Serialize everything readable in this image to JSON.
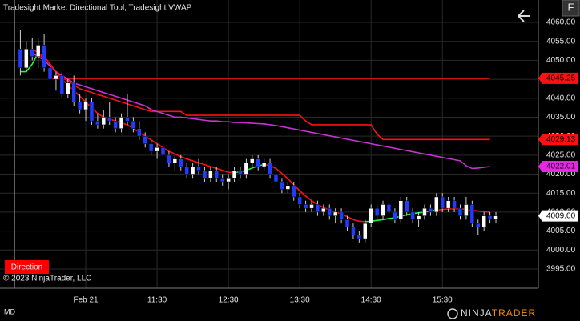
{
  "chart_data": {
    "type": "candlestick",
    "title": "Tradesight Market Directional Tool, Tradesight VWAP",
    "categories": [
      null,
      null,
      null,
      null,
      null,
      null,
      null,
      null,
      null,
      null,
      null,
      "Feb 21",
      null,
      null,
      null,
      null,
      null,
      null,
      null,
      null,
      null,
      null,
      null,
      "11:30",
      null,
      null,
      null,
      null,
      null,
      null,
      null,
      null,
      null,
      null,
      null,
      "12:30",
      null,
      null,
      null,
      null,
      null,
      null,
      null,
      null,
      null,
      null,
      null,
      "13:30",
      null,
      null,
      null,
      null,
      null,
      null,
      null,
      null,
      null,
      null,
      null,
      "14:30",
      null,
      null,
      null,
      null,
      null,
      null,
      null,
      null,
      null,
      null,
      null,
      "15:30",
      null,
      null,
      null,
      null,
      null,
      null,
      null,
      null,
      null
    ],
    "ohlc": [
      [
        4053,
        4058,
        4046,
        4048
      ],
      [
        4048,
        4055,
        4047,
        4053
      ],
      [
        4053,
        4056,
        4050,
        4051
      ],
      [
        4051,
        4056,
        4048,
        4054
      ],
      [
        4054,
        4057,
        4047,
        4048
      ],
      [
        4048,
        4050,
        4043,
        4045
      ],
      [
        4045,
        4047,
        4042,
        4046
      ],
      [
        4046,
        4047,
        4040,
        4041
      ],
      [
        4041,
        4045,
        4040,
        4044
      ],
      [
        4044,
        4046,
        4038,
        4039
      ],
      [
        4039,
        4041,
        4036,
        4037
      ],
      [
        4037,
        4040,
        4034,
        4039
      ],
      [
        4039,
        4040,
        4033,
        4034
      ],
      [
        4034,
        4036,
        4032,
        4033
      ],
      [
        4033,
        4037,
        4032,
        4035
      ],
      [
        4035,
        4039,
        4033,
        4034
      ],
      [
        4034,
        4035,
        4031,
        4032
      ],
      [
        4032,
        4036,
        4031,
        4035
      ],
      [
        4035,
        4041,
        4033,
        4034
      ],
      [
        4034,
        4035,
        4031,
        4032
      ],
      [
        4032,
        4034,
        4029,
        4030
      ],
      [
        4030,
        4031,
        4027,
        4028
      ],
      [
        4028,
        4029,
        4025,
        4026
      ],
      [
        4026,
        4028,
        4024,
        4027
      ],
      [
        4027,
        4028,
        4024,
        4025
      ],
      [
        4025,
        4026,
        4022,
        4023
      ],
      [
        4023,
        4025,
        4021,
        4024
      ],
      [
        4024,
        4025,
        4021,
        4022
      ],
      [
        4022,
        4023,
        4019,
        4020
      ],
      [
        4020,
        4023,
        4019,
        4022
      ],
      [
        4022,
        4024,
        4020,
        4021
      ],
      [
        4021,
        4022,
        4018,
        4019
      ],
      [
        4019,
        4022,
        4018,
        4021
      ],
      [
        4021,
        4022,
        4018,
        4019
      ],
      [
        4019,
        4020,
        4017,
        4018
      ],
      [
        4018,
        4020,
        4016,
        4019
      ],
      [
        4019,
        4022,
        4018,
        4021
      ],
      [
        4021,
        4022,
        4019,
        4020
      ],
      [
        4020,
        4024,
        4019,
        4023
      ],
      [
        4023,
        4025,
        4022,
        4024
      ],
      [
        4024,
        4025,
        4021,
        4022
      ],
      [
        4022,
        4024,
        4021,
        4023
      ],
      [
        4023,
        4024,
        4019,
        4020
      ],
      [
        4020,
        4021,
        4017,
        4018
      ],
      [
        4018,
        4019,
        4015,
        4016
      ],
      [
        4016,
        4018,
        4015,
        4017
      ],
      [
        4017,
        4018,
        4013,
        4014
      ],
      [
        4014,
        4015,
        4011,
        4012
      ],
      [
        4012,
        4013,
        4010,
        4011
      ],
      [
        4011,
        4013,
        4010,
        4012
      ],
      [
        4012,
        4013,
        4009,
        4010
      ],
      [
        4010,
        4012,
        4009,
        4011
      ],
      [
        4011,
        4012,
        4008,
        4009
      ],
      [
        4009,
        4011,
        4007,
        4010
      ],
      [
        4010,
        4011,
        4007,
        4008
      ],
      [
        4008,
        4009,
        4005,
        4006
      ],
      [
        4006,
        4007,
        4003,
        4004
      ],
      [
        4004,
        4005,
        4002,
        4003
      ],
      [
        4003,
        4008,
        4002,
        4007
      ],
      [
        4007,
        4012,
        4006,
        4011
      ],
      [
        4011,
        4012,
        4008,
        4009
      ],
      [
        4009,
        4013,
        4008,
        4012
      ],
      [
        4012,
        4014,
        4009,
        4010
      ],
      [
        4010,
        4011,
        4007,
        4008
      ],
      [
        4008,
        4014,
        4007,
        4013
      ],
      [
        4013,
        4014,
        4009,
        4010
      ],
      [
        4010,
        4011,
        4007,
        4008
      ],
      [
        4008,
        4010,
        4006,
        4009
      ],
      [
        4009,
        4012,
        4008,
        4011
      ],
      [
        4011,
        4012,
        4009,
        4010
      ],
      [
        4010,
        4015,
        4009,
        4014
      ],
      [
        4014,
        4015,
        4010,
        4011
      ],
      [
        4011,
        4014,
        4010,
        4013
      ],
      [
        4013,
        4014,
        4010,
        4011
      ],
      [
        4011,
        4012,
        4008,
        4009
      ],
      [
        4009,
        4014,
        4008,
        4012
      ],
      [
        4012,
        4013,
        4006,
        4007
      ],
      [
        4007,
        4008,
        4004,
        4006
      ],
      [
        4006,
        4010,
        4005,
        4009
      ],
      [
        4009,
        4010,
        4007,
        4008
      ],
      [
        4008,
        4010,
        4007,
        4009
      ]
    ],
    "up_color": "#ffffff",
    "down_color": "#1f3cff",
    "series": [
      {
        "color": "#ff1010",
        "values": [
          null,
          null,
          null,
          null,
          null,
          4045.25,
          4045.25,
          4045.25,
          4045.25,
          4045.25,
          4045.25,
          4045.25,
          4045.25,
          4045.25,
          4045.25,
          4045.25,
          4045.25,
          4045.25,
          4045.25,
          4045.25,
          4045.25,
          4045.25,
          4045.25,
          4045.25,
          4045.25,
          4045.25,
          4045.25,
          4045.25,
          4045.25,
          4045.25,
          4045.25,
          4045.25,
          4045.25,
          4045.25,
          4045.25,
          4045.25,
          4045.25,
          4045.25,
          4045.25,
          4045.25,
          4045.25,
          4045.25,
          4045.25,
          4045.25,
          4045.25,
          4045.25,
          4045.25,
          4045.25,
          4045.25,
          4045.25,
          4045.25,
          4045.25,
          4045.25,
          4045.25,
          4045.25,
          4045.25,
          4045.25,
          4045.25,
          4045.25,
          4045.25,
          4045.25,
          4045.25,
          4045.25,
          4045.25,
          4045.25,
          4045.25,
          4045.25,
          4045.25,
          4045.25,
          4045.25,
          4045.25,
          4045.25,
          4045.25,
          4045.25,
          4045.25,
          4045.25,
          4045.25,
          4045.25,
          4045.25,
          4045.25,
          null
        ]
      },
      {
        "color": "#ff1010",
        "values": [
          null,
          null,
          4053,
          4052,
          4050,
          4048.5,
          4047,
          4045.5,
          4044.5,
          4043.5,
          4042.5,
          4042,
          4041.5,
          4041,
          4040.5,
          4040,
          4039.5,
          4039,
          4038.5,
          4038,
          4037.5,
          4037,
          4036.5,
          4036.5,
          4036.5,
          4036.5,
          4036.5,
          4036.5,
          4035.5,
          4035.5,
          4035.5,
          4035.5,
          4035.5,
          4035.5,
          4035.5,
          4035.5,
          4035.5,
          4035.5,
          4035.5,
          4035.5,
          4035.5,
          4035.5,
          4035.5,
          4035.5,
          4035.5,
          4035.5,
          4035.5,
          4035.5,
          4034,
          4033,
          4033,
          4033,
          4033,
          4033,
          4033,
          4033,
          4033,
          4033,
          4033,
          4033,
          4030.5,
          4029.13,
          4029.13,
          4029.13,
          4029.13,
          4029.13,
          4029.13,
          4029.13,
          4029.13,
          4029.13,
          4029.13,
          4029.13,
          4029.13,
          4029.13,
          4029.13,
          4029.13,
          4029.13,
          4029.13,
          4029.13,
          4029.13,
          null
        ]
      },
      {
        "color": "#c832d2",
        "values": [
          null,
          null,
          4052,
          4051,
          4050,
          4048.5,
          4047,
          4046,
          4045,
          4044,
          4043.5,
          4043,
          4042.5,
          4042,
          4041.5,
          4041,
          4040.5,
          4040,
          4039.5,
          4039,
          4038.5,
          4038,
          4037,
          4036.5,
          4036,
          4035.5,
          4035,
          4035,
          4034.8,
          4034.6,
          4034.4,
          4034.2,
          4034,
          4034,
          4033.8,
          4033.8,
          4033.6,
          4033.6,
          4033.5,
          4033.4,
          4033.3,
          4033.2,
          4033,
          4032.8,
          4032.5,
          4032.2,
          4031.9,
          4031.6,
          4031.3,
          4031,
          4030.7,
          4030.4,
          4030.1,
          4029.8,
          4029.5,
          4029.2,
          4028.9,
          4028.6,
          4028.3,
          4028,
          4027.7,
          4027.4,
          4027.1,
          4026.8,
          4026.5,
          4026.2,
          4025.9,
          4025.6,
          4025.3,
          4025,
          4024.7,
          4024.4,
          4024.1,
          4023.8,
          4023.5,
          4022.2,
          4021.5,
          4021.6,
          4021.8,
          4022.01,
          null
        ]
      },
      {
        "color": "#ff1010",
        "values": [
          null,
          null,
          null,
          4052,
          4051,
          4049,
          4047,
          4045,
          4043.5,
          4042,
          4040.5,
          4039,
          4037.5,
          4036,
          4035,
          4034.5,
          4034,
          4033.5,
          4033,
          4032,
          4031,
          4030,
          4029,
          4028,
          4027,
          4026,
          4025.3,
          4024.6,
          4024,
          4023.5,
          4023,
          4022.5,
          4022,
          4021.5,
          4021,
          4020.5,
          4020.4,
          null,
          null,
          null,
          null,
          4022.5,
          4022.3,
          4021.5,
          4020.2,
          4018.8,
          4017.2,
          4015.6,
          4014.2,
          4013,
          4012,
          4011.2,
          4010.5,
          4010,
          4009.5,
          4008.8,
          4008,
          4007.6,
          4007.5,
          null,
          null,
          null,
          null,
          null,
          null,
          null,
          null,
          null,
          null,
          null,
          4010.5,
          4010.7,
          4010.8,
          4010.9,
          4010.9,
          4010.7,
          4010.5,
          4010.3,
          4010.1,
          4010,
          null
        ]
      },
      {
        "color": "#14ff3c",
        "values": [
          4047,
          4047,
          4049,
          4052,
          null,
          null,
          null,
          null,
          null,
          null,
          null,
          null,
          null,
          null,
          null,
          null,
          null,
          null,
          null,
          null,
          null,
          null,
          null,
          null,
          null,
          null,
          null,
          null,
          null,
          null,
          null,
          null,
          null,
          null,
          null,
          null,
          4020.4,
          4020.6,
          4021,
          4021.6,
          4022.2,
          4022.5,
          null,
          null,
          null,
          null,
          null,
          null,
          null,
          null,
          null,
          null,
          null,
          null,
          null,
          null,
          null,
          null,
          4007.5,
          4007.6,
          4007.8,
          4008,
          4008.3,
          4008.5,
          4008.9,
          4009.3,
          4009.6,
          4009.8,
          4010,
          4010.3,
          4010.5,
          null,
          null,
          null,
          null,
          null,
          null,
          null,
          null,
          null,
          null
        ]
      }
    ],
    "ylim": [
      3989.93,
      4065.91
    ],
    "yticks": [
      {
        "value": 3995,
        "label": "3995.00"
      },
      {
        "value": 4000,
        "label": "4000.00"
      },
      {
        "value": 4005,
        "label": "4005.00"
      },
      {
        "value": 4010,
        "label": "4010.00"
      },
      {
        "value": 4015,
        "label": "4015.00"
      },
      {
        "value": 4020,
        "label": "4020.00"
      },
      {
        "value": 4025,
        "label": "4025.00"
      },
      {
        "value": 4030,
        "label": "4030.00"
      },
      {
        "value": 4035,
        "label": "4035.00"
      },
      {
        "value": 4040,
        "label": "4040.00"
      },
      {
        "value": 4045,
        "label": "4045.00"
      },
      {
        "value": 4050,
        "label": "4050.00"
      },
      {
        "value": 4055,
        "label": "4055.00"
      },
      {
        "value": 4060,
        "label": "4060.00"
      }
    ],
    "grid": true,
    "price_markers": [
      {
        "value": 4045.25,
        "label": "4045.25",
        "color": "#ff1010"
      },
      {
        "value": 4029.13,
        "label": "4029.13",
        "color": "#ff1010"
      },
      {
        "value": 4022.01,
        "label": "4022.01",
        "color": "#e628e6"
      },
      {
        "value": 4009,
        "label": "4009.00",
        "color": "#ffffff"
      }
    ]
  },
  "ui": {
    "direction_button": "Direction",
    "copyright": "© 2023 NinjaTrader, LLC",
    "instrument": "MD",
    "f_button": "F",
    "logo_left": "NINJA",
    "logo_right": "TRADER"
  }
}
